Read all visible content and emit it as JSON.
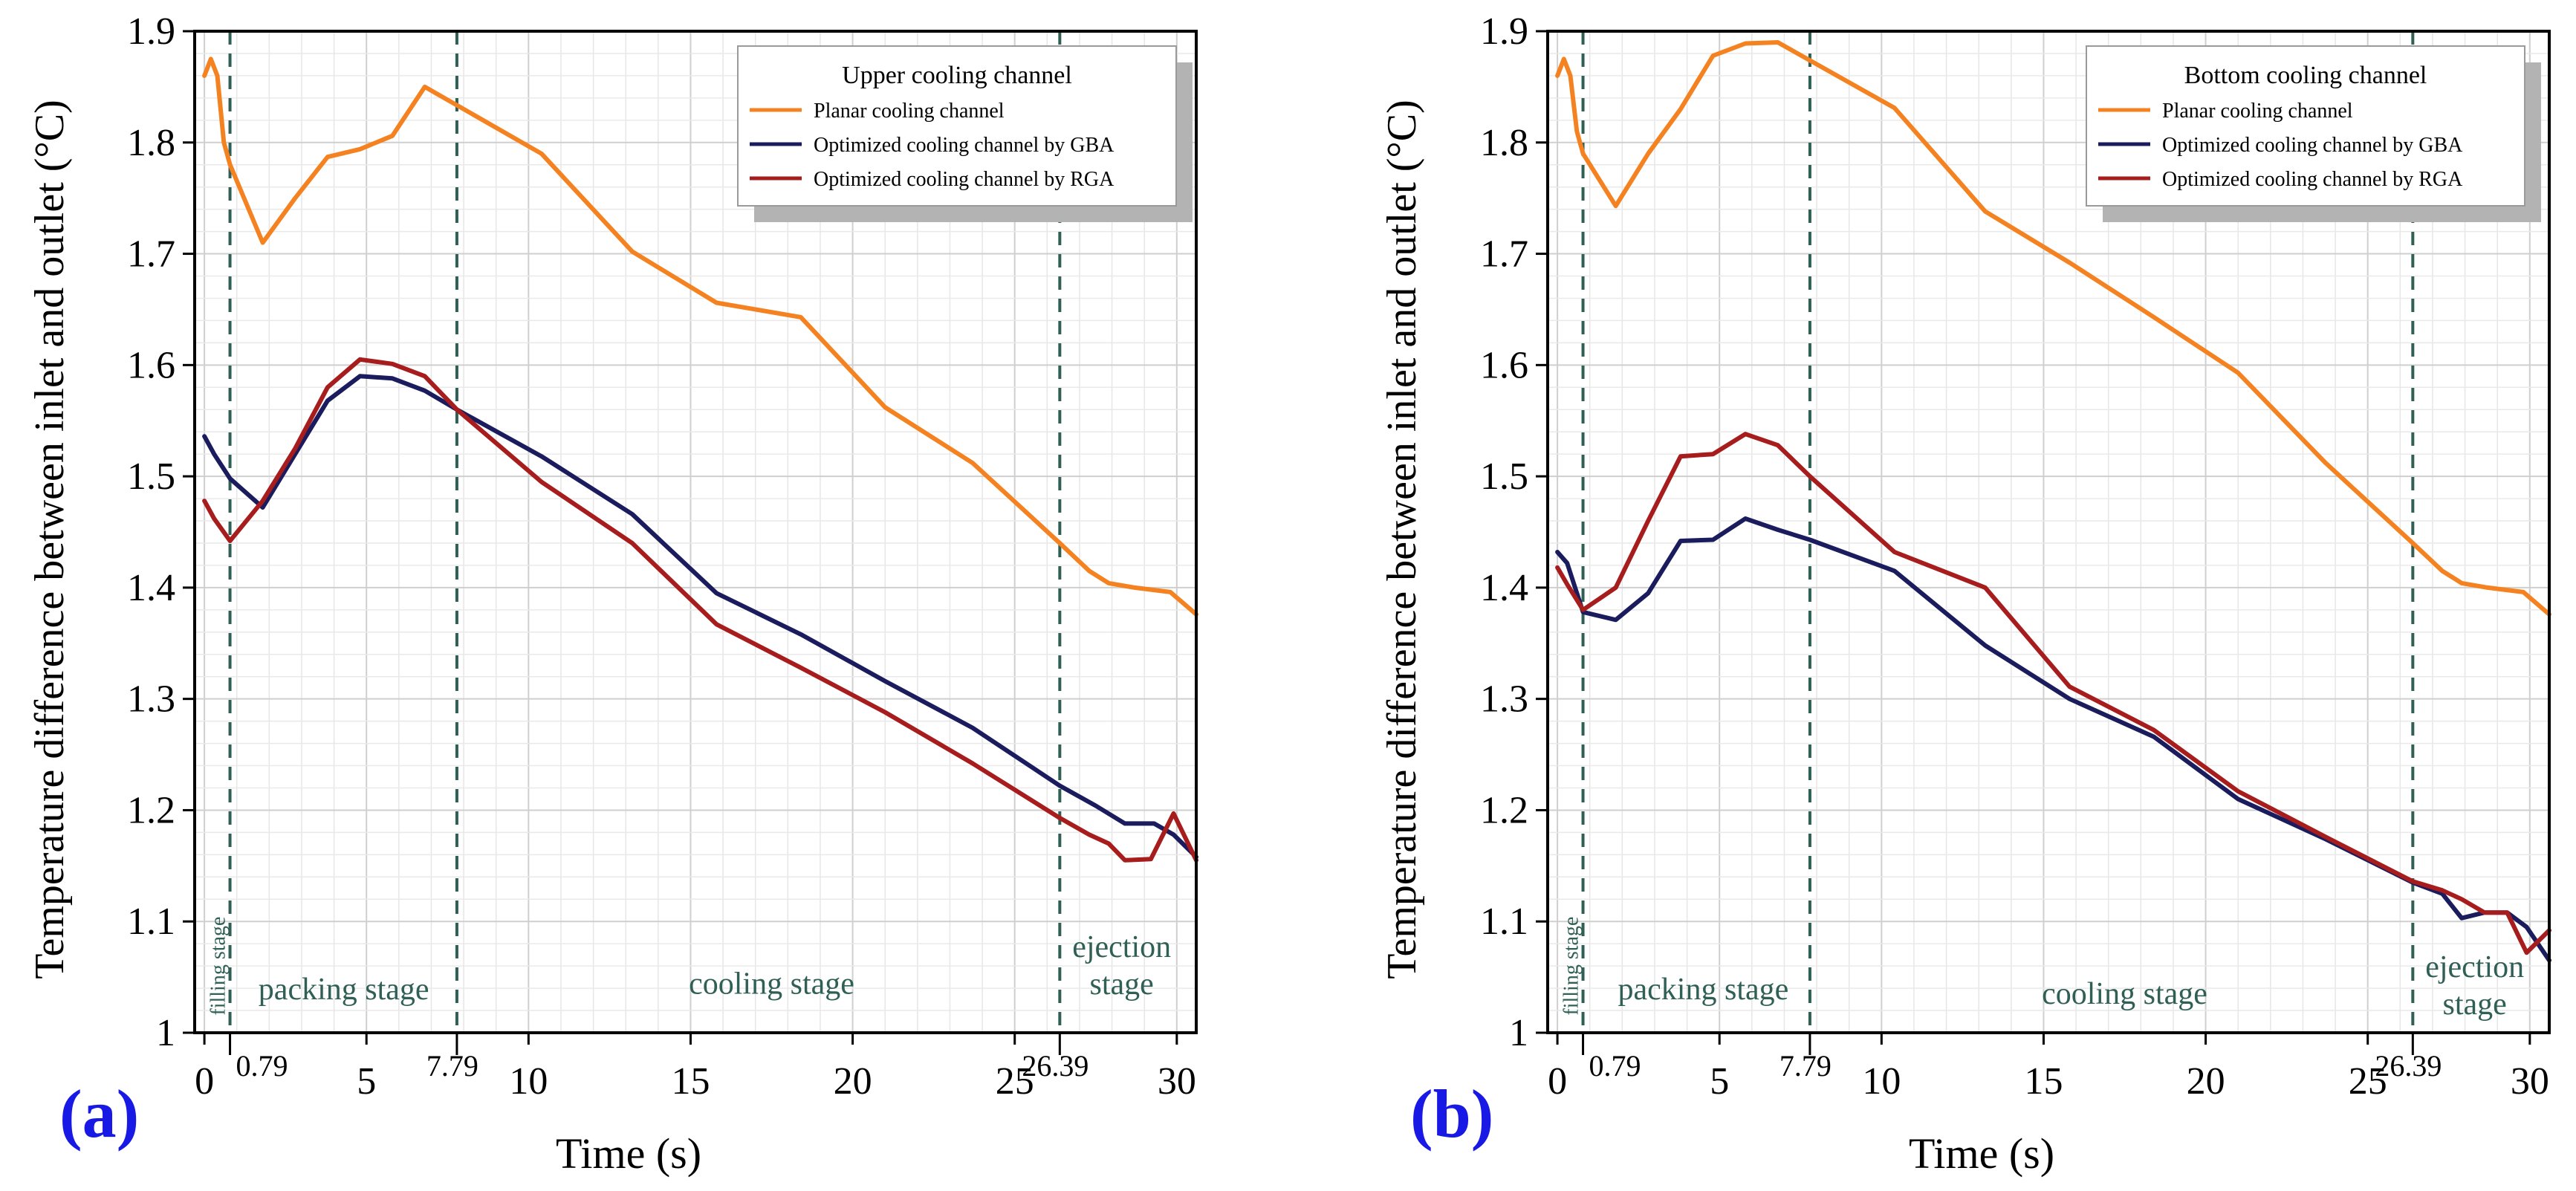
{
  "chart_data": [
    {
      "type": "line",
      "panel_label": "(a)",
      "legend_title": "Upper cooling channel",
      "xlabel": "Time (s)",
      "ylabel": "Temperature difference between inlet and outlet (°C)",
      "xlim": [
        -0.3,
        30.6
      ],
      "ylim": [
        1.0,
        1.9
      ],
      "xticks": [
        0,
        5,
        10,
        15,
        20,
        25,
        30
      ],
      "yticks": [
        1,
        1.1,
        1.2,
        1.3,
        1.4,
        1.5,
        1.6,
        1.7,
        1.8,
        1.9
      ],
      "grid": true,
      "stage_lines": [
        {
          "x": 0.79,
          "label": "0.79"
        },
        {
          "x": 7.79,
          "label": "7.79"
        },
        {
          "x": 26.39,
          "label": "26.39"
        }
      ],
      "stages": [
        {
          "name": "filling stage",
          "x": 0.4,
          "y": 1.06,
          "vertical": true
        },
        {
          "name": "packing stage",
          "x": 4.3,
          "y": 1.03
        },
        {
          "name": "cooling stage",
          "x": 17.5,
          "y": 1.035
        },
        {
          "name": "ejection stage",
          "lines": [
            "ejection",
            "stage"
          ],
          "x": 28.3,
          "y": 1.068
        }
      ],
      "series": [
        {
          "name": "Planar cooling channel",
          "color": "#F58220",
          "x": [
            0,
            0.2,
            0.4,
            0.6,
            0.79,
            1.8,
            2.8,
            3.8,
            4.8,
            5.8,
            6.8,
            10.4,
            13.2,
            15.8,
            18.4,
            21,
            23.7,
            26.39,
            27.3,
            27.9,
            28.7,
            29.8,
            30.6
          ],
          "y": [
            1.86,
            1.875,
            1.86,
            1.8,
            1.78,
            1.71,
            1.75,
            1.787,
            1.794,
            1.806,
            1.85,
            1.79,
            1.702,
            1.656,
            1.643,
            1.562,
            1.512,
            1.44,
            1.415,
            1.404,
            1.4,
            1.396,
            1.376
          ]
        },
        {
          "name": "Optimized cooling channel by GBA",
          "color": "#1A1C5E",
          "x": [
            0,
            0.3,
            0.79,
            1.8,
            2.8,
            3.8,
            4.8,
            5.8,
            6.8,
            7.79,
            10.4,
            13.2,
            15.8,
            18.4,
            21,
            23.7,
            26.39,
            27.5,
            28.4,
            29.3,
            29.9,
            30.6
          ],
          "y": [
            1.536,
            1.52,
            1.498,
            1.472,
            1.52,
            1.568,
            1.59,
            1.588,
            1.577,
            1.56,
            1.518,
            1.466,
            1.395,
            1.358,
            1.316,
            1.274,
            1.222,
            1.204,
            1.188,
            1.188,
            1.178,
            1.158
          ]
        },
        {
          "name": "Optimized cooling channel by RGA",
          "color": "#A71C1C",
          "x": [
            0,
            0.3,
            0.79,
            1.8,
            2.8,
            3.8,
            4.8,
            5.8,
            6.8,
            7.79,
            10.4,
            13.2,
            15.8,
            18.4,
            21,
            23.7,
            26.39,
            27.3,
            27.9,
            28.4,
            29.2,
            29.9,
            30.6
          ],
          "y": [
            1.478,
            1.462,
            1.442,
            1.478,
            1.525,
            1.58,
            1.605,
            1.601,
            1.59,
            1.56,
            1.495,
            1.44,
            1.367,
            1.328,
            1.288,
            1.242,
            1.193,
            1.178,
            1.17,
            1.155,
            1.156,
            1.197,
            1.155
          ]
        }
      ]
    },
    {
      "type": "line",
      "panel_label": "(b)",
      "legend_title": "Bottom cooling channel",
      "xlabel": "Time (s)",
      "ylabel": "Temperature difference between inlet and outlet (°C)",
      "xlim": [
        -0.3,
        30.6
      ],
      "ylim": [
        1.0,
        1.9
      ],
      "xticks": [
        0,
        5,
        10,
        15,
        20,
        25,
        30
      ],
      "yticks": [
        1,
        1.1,
        1.2,
        1.3,
        1.4,
        1.5,
        1.6,
        1.7,
        1.8,
        1.9
      ],
      "grid": true,
      "stage_lines": [
        {
          "x": 0.79,
          "label": "0.79"
        },
        {
          "x": 7.79,
          "label": "7.79"
        },
        {
          "x": 26.39,
          "label": "26.39"
        }
      ],
      "stages": [
        {
          "name": "filling stage",
          "x": 0.4,
          "y": 1.06,
          "vertical": true
        },
        {
          "name": "packing stage",
          "x": 4.5,
          "y": 1.03
        },
        {
          "name": "cooling stage",
          "x": 17.5,
          "y": 1.026
        },
        {
          "name": "ejection stage",
          "lines": [
            "ejection",
            "stage"
          ],
          "x": 28.3,
          "y": 1.05
        }
      ],
      "series": [
        {
          "name": "Planar cooling channel",
          "color": "#F58220",
          "x": [
            0,
            0.2,
            0.4,
            0.6,
            0.79,
            1.8,
            2.8,
            3.8,
            4.8,
            5.8,
            6.8,
            10.4,
            13.2,
            15.8,
            18.4,
            21,
            23.7,
            26.39,
            27.3,
            27.9,
            28.7,
            29.8,
            30.6
          ],
          "y": [
            1.86,
            1.875,
            1.86,
            1.81,
            1.79,
            1.743,
            1.79,
            1.83,
            1.878,
            1.889,
            1.89,
            1.831,
            1.738,
            1.692,
            1.643,
            1.593,
            1.512,
            1.44,
            1.415,
            1.404,
            1.4,
            1.396,
            1.376
          ]
        },
        {
          "name": "Optimized cooling channel by GBA",
          "color": "#1A1C5E",
          "x": [
            0,
            0.3,
            0.79,
            1.8,
            2.8,
            3.8,
            4.8,
            5.8,
            6.8,
            7.79,
            10.4,
            13.2,
            15.8,
            18.4,
            21,
            23.7,
            26.39,
            27.3,
            27.9,
            28.6,
            29.3,
            29.9,
            30.6
          ],
          "y": [
            1.432,
            1.422,
            1.378,
            1.371,
            1.395,
            1.442,
            1.443,
            1.462,
            1.452,
            1.443,
            1.415,
            1.348,
            1.3,
            1.266,
            1.21,
            1.174,
            1.135,
            1.125,
            1.103,
            1.108,
            1.108,
            1.095,
            1.065
          ]
        },
        {
          "name": "Optimized cooling channel by RGA",
          "color": "#A71C1C",
          "x": [
            0,
            0.3,
            0.79,
            1.8,
            2.8,
            3.8,
            4.8,
            5.8,
            6.8,
            7.79,
            10.4,
            13.2,
            15.8,
            18.4,
            21,
            23.7,
            26.39,
            27.3,
            27.9,
            28.6,
            29.3,
            29.9,
            30.6
          ],
          "y": [
            1.418,
            1.403,
            1.38,
            1.4,
            1.46,
            1.518,
            1.52,
            1.538,
            1.528,
            1.5,
            1.432,
            1.4,
            1.311,
            1.272,
            1.217,
            1.176,
            1.136,
            1.128,
            1.12,
            1.108,
            1.108,
            1.072,
            1.092
          ]
        }
      ]
    }
  ]
}
